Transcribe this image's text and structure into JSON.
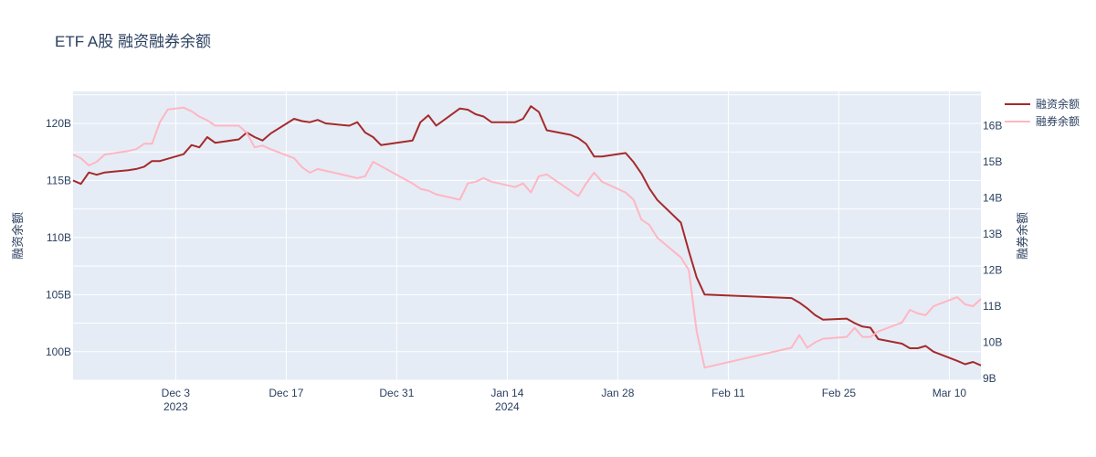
{
  "chart_data": {
    "type": "line",
    "title": "ETF A股 融资融券余额",
    "y_left_title": "融资余额",
    "y_right_title": "融券余额",
    "x_ticks": [
      {
        "date": "2023-12-03",
        "label": "Dec 3",
        "year": "2023"
      },
      {
        "date": "2023-12-17",
        "label": "Dec 17",
        "year": ""
      },
      {
        "date": "2023-12-31",
        "label": "Dec 31",
        "year": ""
      },
      {
        "date": "2024-01-14",
        "label": "Jan 14",
        "year": "2024"
      },
      {
        "date": "2024-01-28",
        "label": "Jan 28",
        "year": ""
      },
      {
        "date": "2024-02-11",
        "label": "Feb 11",
        "year": ""
      },
      {
        "date": "2024-02-25",
        "label": "Feb 25",
        "year": ""
      },
      {
        "date": "2024-03-10",
        "label": "Mar 10",
        "year": ""
      }
    ],
    "x_range": [
      "2023-11-20",
      "2024-03-14"
    ],
    "y_left_range": [
      97.5,
      122.8
    ],
    "y_right_range": [
      8.95,
      16.95
    ],
    "y_left_ticks": [
      {
        "value": 100,
        "label": "100B"
      },
      {
        "value": 105,
        "label": "105B"
      },
      {
        "value": 110,
        "label": "110B"
      },
      {
        "value": 115,
        "label": "115B"
      },
      {
        "value": 120,
        "label": "120B"
      }
    ],
    "y_right_ticks": [
      {
        "value": 9,
        "label": "9B"
      },
      {
        "value": 10,
        "label": "10B"
      },
      {
        "value": 11,
        "label": "11B"
      },
      {
        "value": 12,
        "label": "12B"
      },
      {
        "value": 13,
        "label": "13B"
      },
      {
        "value": 14,
        "label": "14B"
      },
      {
        "value": 15,
        "label": "15B"
      },
      {
        "value": 16,
        "label": "16B"
      }
    ],
    "grid": true,
    "legend_position": "top-right",
    "series": [
      {
        "name": "融资余额",
        "color": "#a52a2a",
        "axis": "left",
        "points": [
          [
            "2023-11-20",
            115.0
          ],
          [
            "2023-11-21",
            114.7
          ],
          [
            "2023-11-22",
            115.7
          ],
          [
            "2023-11-23",
            115.5
          ],
          [
            "2023-11-24",
            115.7
          ],
          [
            "2023-11-27",
            115.9
          ],
          [
            "2023-11-28",
            116.0
          ],
          [
            "2023-11-29",
            116.2
          ],
          [
            "2023-11-30",
            116.7
          ],
          [
            "2023-12-01",
            116.7
          ],
          [
            "2023-12-04",
            117.3
          ],
          [
            "2023-12-05",
            118.1
          ],
          [
            "2023-12-06",
            117.9
          ],
          [
            "2023-12-07",
            118.8
          ],
          [
            "2023-12-08",
            118.3
          ],
          [
            "2023-12-11",
            118.6
          ],
          [
            "2023-12-12",
            119.2
          ],
          [
            "2023-12-13",
            118.8
          ],
          [
            "2023-12-14",
            118.5
          ],
          [
            "2023-12-15",
            119.1
          ],
          [
            "2023-12-18",
            120.4
          ],
          [
            "2023-12-19",
            120.2
          ],
          [
            "2023-12-20",
            120.1
          ],
          [
            "2023-12-21",
            120.3
          ],
          [
            "2023-12-22",
            120.0
          ],
          [
            "2023-12-25",
            119.8
          ],
          [
            "2023-12-26",
            120.1
          ],
          [
            "2023-12-27",
            119.2
          ],
          [
            "2023-12-28",
            118.8
          ],
          [
            "2023-12-29",
            118.1
          ],
          [
            "2024-01-02",
            118.5
          ],
          [
            "2024-01-03",
            120.1
          ],
          [
            "2024-01-04",
            120.7
          ],
          [
            "2024-01-05",
            119.8
          ],
          [
            "2024-01-08",
            121.3
          ],
          [
            "2024-01-09",
            121.2
          ],
          [
            "2024-01-10",
            120.8
          ],
          [
            "2024-01-11",
            120.6
          ],
          [
            "2024-01-12",
            120.1
          ],
          [
            "2024-01-15",
            120.1
          ],
          [
            "2024-01-16",
            120.4
          ],
          [
            "2024-01-17",
            121.5
          ],
          [
            "2024-01-18",
            121.0
          ],
          [
            "2024-01-19",
            119.4
          ],
          [
            "2024-01-22",
            119.0
          ],
          [
            "2024-01-23",
            118.7
          ],
          [
            "2024-01-24",
            118.2
          ],
          [
            "2024-01-25",
            117.1
          ],
          [
            "2024-01-26",
            117.1
          ],
          [
            "2024-01-29",
            117.4
          ],
          [
            "2024-01-30",
            116.6
          ],
          [
            "2024-01-31",
            115.6
          ],
          [
            "2024-02-01",
            114.3
          ],
          [
            "2024-02-02",
            113.3
          ],
          [
            "2024-02-05",
            111.3
          ],
          [
            "2024-02-06",
            108.8
          ],
          [
            "2024-02-07",
            106.5
          ],
          [
            "2024-02-08",
            105.0
          ],
          [
            "2024-02-19",
            104.7
          ],
          [
            "2024-02-20",
            104.3
          ],
          [
            "2024-02-21",
            103.8
          ],
          [
            "2024-02-22",
            103.2
          ],
          [
            "2024-02-23",
            102.8
          ],
          [
            "2024-02-26",
            102.9
          ],
          [
            "2024-02-27",
            102.5
          ],
          [
            "2024-02-28",
            102.2
          ],
          [
            "2024-02-29",
            102.1
          ],
          [
            "2024-03-01",
            101.1
          ],
          [
            "2024-03-04",
            100.7
          ],
          [
            "2024-03-05",
            100.3
          ],
          [
            "2024-03-06",
            100.3
          ],
          [
            "2024-03-07",
            100.5
          ],
          [
            "2024-03-08",
            100.0
          ],
          [
            "2024-03-11",
            99.2
          ],
          [
            "2024-03-12",
            98.9
          ],
          [
            "2024-03-13",
            99.1
          ],
          [
            "2024-03-14",
            98.8
          ]
        ]
      },
      {
        "name": "融券余额",
        "color": "#ffb6c1",
        "axis": "right",
        "points": [
          [
            "2023-11-20",
            15.2
          ],
          [
            "2023-11-21",
            15.1
          ],
          [
            "2023-11-22",
            14.9
          ],
          [
            "2023-11-23",
            15.0
          ],
          [
            "2023-11-24",
            15.2
          ],
          [
            "2023-11-27",
            15.3
          ],
          [
            "2023-11-28",
            15.35
          ],
          [
            "2023-11-29",
            15.5
          ],
          [
            "2023-11-30",
            15.5
          ],
          [
            "2023-12-01",
            16.1
          ],
          [
            "2023-12-02",
            16.45
          ],
          [
            "2023-12-04",
            16.5
          ],
          [
            "2023-12-05",
            16.4
          ],
          [
            "2023-12-06",
            16.25
          ],
          [
            "2023-12-07",
            16.15
          ],
          [
            "2023-12-08",
            16.0
          ],
          [
            "2023-12-11",
            16.0
          ],
          [
            "2023-12-12",
            15.8
          ],
          [
            "2023-12-13",
            15.4
          ],
          [
            "2023-12-14",
            15.45
          ],
          [
            "2023-12-15",
            15.35
          ],
          [
            "2023-12-18",
            15.1
          ],
          [
            "2023-12-19",
            14.85
          ],
          [
            "2023-12-20",
            14.7
          ],
          [
            "2023-12-21",
            14.8
          ],
          [
            "2023-12-22",
            14.75
          ],
          [
            "2023-12-25",
            14.6
          ],
          [
            "2023-12-26",
            14.55
          ],
          [
            "2023-12-27",
            14.6
          ],
          [
            "2023-12-28",
            15.0
          ],
          [
            "2024-01-02",
            14.4
          ],
          [
            "2024-01-03",
            14.25
          ],
          [
            "2024-01-04",
            14.2
          ],
          [
            "2024-01-05",
            14.1
          ],
          [
            "2024-01-08",
            13.95
          ],
          [
            "2024-01-09",
            14.4
          ],
          [
            "2024-01-10",
            14.45
          ],
          [
            "2024-01-11",
            14.55
          ],
          [
            "2024-01-12",
            14.45
          ],
          [
            "2024-01-15",
            14.3
          ],
          [
            "2024-01-16",
            14.4
          ],
          [
            "2024-01-17",
            14.15
          ],
          [
            "2024-01-18",
            14.6
          ],
          [
            "2024-01-19",
            14.65
          ],
          [
            "2024-01-22",
            14.2
          ],
          [
            "2024-01-23",
            14.05
          ],
          [
            "2024-01-24",
            14.4
          ],
          [
            "2024-01-25",
            14.7
          ],
          [
            "2024-01-26",
            14.45
          ],
          [
            "2024-01-29",
            14.15
          ],
          [
            "2024-01-30",
            13.95
          ],
          [
            "2024-01-31",
            13.4
          ],
          [
            "2024-02-01",
            13.25
          ],
          [
            "2024-02-02",
            12.9
          ],
          [
            "2024-02-05",
            12.35
          ],
          [
            "2024-02-06",
            12.0
          ],
          [
            "2024-02-07",
            10.3
          ],
          [
            "2024-02-08",
            9.3
          ],
          [
            "2024-02-19",
            9.85
          ],
          [
            "2024-02-20",
            10.2
          ],
          [
            "2024-02-21",
            9.85
          ],
          [
            "2024-02-22",
            10.0
          ],
          [
            "2024-02-23",
            10.1
          ],
          [
            "2024-02-26",
            10.15
          ],
          [
            "2024-02-27",
            10.4
          ],
          [
            "2024-02-28",
            10.15
          ],
          [
            "2024-02-29",
            10.15
          ],
          [
            "2024-03-01",
            10.3
          ],
          [
            "2024-03-04",
            10.55
          ],
          [
            "2024-03-05",
            10.9
          ],
          [
            "2024-03-06",
            10.8
          ],
          [
            "2024-03-07",
            10.75
          ],
          [
            "2024-03-08",
            11.0
          ],
          [
            "2024-03-11",
            11.25
          ],
          [
            "2024-03-12",
            11.05
          ],
          [
            "2024-03-13",
            11.0
          ],
          [
            "2024-03-14",
            11.2
          ]
        ]
      }
    ]
  }
}
